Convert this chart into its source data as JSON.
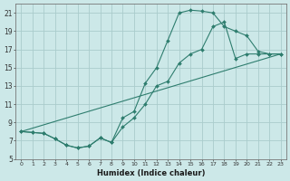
{
  "xlabel": "Humidex (Indice chaleur)",
  "background_color": "#cce8e8",
  "grid_color": "#aacccc",
  "line_color": "#2e7d6e",
  "ylim": [
    5,
    22
  ],
  "xlim": [
    -0.5,
    23.5
  ],
  "yticks": [
    5,
    7,
    9,
    11,
    13,
    15,
    17,
    19,
    21
  ],
  "xticks": [
    0,
    1,
    2,
    3,
    4,
    5,
    6,
    7,
    8,
    9,
    10,
    11,
    12,
    13,
    14,
    15,
    16,
    17,
    18,
    19,
    20,
    21,
    22,
    23
  ],
  "line1_x": [
    0,
    1,
    2,
    3,
    4,
    5,
    6,
    7,
    8,
    9,
    10,
    11,
    12,
    13,
    14,
    15,
    16,
    17,
    18,
    19,
    20,
    21,
    22,
    23
  ],
  "line1_y": [
    8.0,
    7.9,
    7.8,
    7.2,
    6.5,
    6.2,
    6.4,
    7.3,
    6.8,
    9.5,
    10.2,
    13.3,
    15.0,
    18.0,
    21.0,
    21.3,
    21.2,
    21.0,
    19.5,
    19.0,
    18.5,
    16.8,
    16.5,
    16.5
  ],
  "line2_x": [
    0,
    1,
    2,
    3,
    4,
    5,
    6,
    7,
    8,
    9,
    10,
    11,
    12,
    13,
    14,
    15,
    16,
    17,
    18,
    19,
    20,
    21,
    22,
    23
  ],
  "line2_y": [
    8.0,
    7.9,
    7.8,
    7.2,
    6.5,
    6.2,
    6.4,
    7.3,
    6.8,
    8.5,
    9.5,
    11.0,
    13.0,
    13.5,
    15.5,
    16.5,
    17.0,
    19.5,
    20.0,
    16.0,
    16.5,
    16.5,
    16.5,
    16.5
  ],
  "line3_x": [
    0,
    23
  ],
  "line3_y": [
    8.0,
    16.5
  ]
}
